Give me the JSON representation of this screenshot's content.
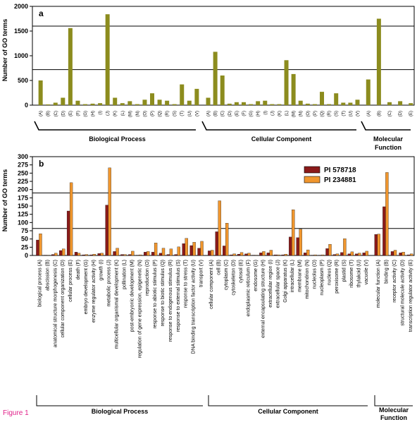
{
  "figure_caption": "Figure 1",
  "colors": {
    "panel_a_bar": "#8c8c1e",
    "series_578718": "#8b1a1a",
    "series_234881": "#f0962e",
    "caption": "#e0218a"
  },
  "chart_data": [
    {
      "panel": "a",
      "type": "bar",
      "ylabel": "Number of GO terms",
      "ylim": [
        0,
        2000
      ],
      "yticks": [
        0,
        500,
        1000,
        1500,
        2000
      ],
      "reference_lines": [
        1600,
        720
      ],
      "groups": [
        {
          "name": "Biological Process",
          "categories": [
            "(A)",
            "(B)",
            "(C)",
            "(D)",
            "(E)",
            "(F)",
            "(G)",
            "(H)",
            "(I)",
            "(J)",
            "(K)",
            "(L)",
            "(M)",
            "(N)",
            "(O)",
            "(P)",
            "(Q)",
            "(R)",
            "(S)",
            "(T)",
            "(U)",
            "(V)"
          ],
          "values": [
            500,
            15,
            50,
            150,
            1560,
            90,
            20,
            30,
            40,
            1840,
            150,
            40,
            80,
            20,
            110,
            240,
            110,
            90,
            20,
            420,
            90,
            330
          ]
        },
        {
          "name": "Cellular Component",
          "categories": [
            "(A)",
            "(B)",
            "(C)",
            "(D)",
            "(E)",
            "(F)",
            "(G)",
            "(H)",
            "(I)",
            "(J)",
            "(K)",
            "(L)",
            "(M)",
            "(N)",
            "(O)",
            "(P)",
            "(Q)",
            "(R)",
            "(S)",
            "(T)",
            "(U)",
            "(V)"
          ],
          "values": [
            150,
            1080,
            600,
            30,
            60,
            60,
            20,
            80,
            90,
            20,
            20,
            910,
            630,
            90,
            30,
            20,
            270,
            20,
            240,
            50,
            50,
            110
          ]
        },
        {
          "name": "Molecular Function",
          "categories": [
            "(A)",
            "(B)",
            "(C)",
            "(D)",
            "(E)"
          ],
          "values": [
            520,
            1750,
            60,
            80,
            40
          ]
        }
      ]
    },
    {
      "panel": "b",
      "type": "bar",
      "ylabel": "Number of GO terms",
      "ylim": [
        0,
        300
      ],
      "yticks": [
        0,
        25,
        50,
        75,
        100,
        125,
        150,
        175,
        200,
        225,
        250,
        275,
        300
      ],
      "reference_lines": [
        190,
        82
      ],
      "legend": [
        "PI 578718",
        "PI 234881"
      ],
      "groups": [
        {
          "name": "Biological Process",
          "categories": [
            "biological process (A)",
            "abscission (B)",
            "anatomical structure morphogenesis (C)",
            "cellular component organization (D)",
            "cellular process (E)",
            "death (F)",
            "embryo development (G)",
            "enzyme regulator activity (H)",
            "growth (I)",
            "metabolic process (J)",
            "multicellular organismal development (K)",
            "pollination (L)",
            "post-embryonic development (M)",
            "regulation of gene expression, epigenetic (N)",
            "reproduction (O)",
            "response to abiotic stimulus (P)",
            "response to biotic stimulus (Q)",
            "response to endogenous stimulus (R)",
            "response to external stimulus (S)",
            "response to stress (T)",
            "DNA binding transcription factor activity (U)",
            "transport (V)"
          ],
          "values_578718": [
            47,
            1,
            3,
            15,
            135,
            10,
            2,
            2,
            6,
            153,
            12,
            3,
            3,
            1,
            10,
            10,
            7,
            3,
            3,
            36,
            30,
            22
          ],
          "values_234881": [
            66,
            1,
            7,
            20,
            221,
            7,
            3,
            4,
            7,
            266,
            22,
            3,
            13,
            2,
            12,
            38,
            22,
            20,
            26,
            52,
            40,
            43
          ]
        },
        {
          "name": "Cellular Component",
          "categories": [
            "cellular component (A)",
            "cell (B)",
            "cytoplasm (C)",
            "cytoskeleton (D)",
            "cytosol (E)",
            "endoplasmic reticulum (F)",
            "endosome (G)",
            "external encapsulating structure (H)",
            "extracellular region (I)",
            "extracellular space (J)",
            "Golgi apparatus (K)",
            "intracellular (L)",
            "membrane (M)",
            "mitochondrion (N)",
            "nucleolus (O)",
            "nucleoplasm (P)",
            "nucleus (Q)",
            "peroxisome (R)",
            "plastid (S)",
            "ribosome (T)",
            "thylakoid (U)",
            "vacuole (V)"
          ],
          "values_578718": [
            14,
            72,
            29,
            2,
            4,
            5,
            1,
            8,
            8,
            2,
            2,
            56,
            54,
            8,
            1,
            1,
            21,
            3,
            9,
            5,
            5,
            8
          ],
          "values_234881": [
            16,
            166,
            98,
            5,
            9,
            7,
            1,
            12,
            16,
            2,
            4,
            139,
            80,
            17,
            2,
            2,
            34,
            5,
            51,
            11,
            7,
            13
          ]
        },
        {
          "name": "Molecular Function",
          "categories": [
            "molecular function (A)",
            "binding (B)",
            "receptor activity (C)",
            "structural molecule activity (D)",
            "transcription regulator activity (E)"
          ],
          "values_578718": [
            64,
            148,
            12,
            8,
            2
          ],
          "values_234881": [
            65,
            252,
            16,
            10,
            5
          ]
        }
      ]
    }
  ]
}
